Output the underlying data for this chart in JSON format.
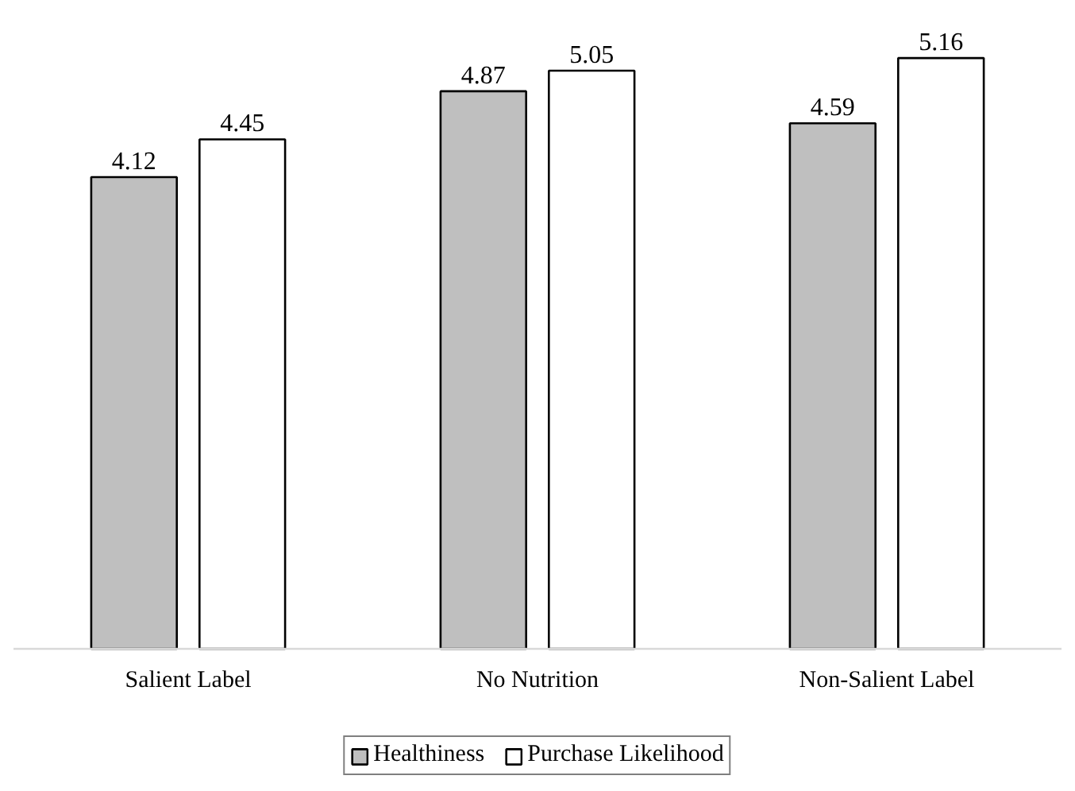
{
  "chart_data": {
    "type": "bar",
    "categories": [
      "Salient Label",
      "No Nutrition",
      "Non-Salient Label"
    ],
    "series": [
      {
        "name": "Healthiness",
        "color": "#bfbfbf",
        "values": [
          4.12,
          4.87,
          4.59
        ]
      },
      {
        "name": "Purchase Likelihood",
        "color": "#ffffff",
        "values": [
          4.45,
          5.05,
          5.16
        ]
      }
    ],
    "data_labels": true,
    "legend": "bottom",
    "grid": false
  }
}
